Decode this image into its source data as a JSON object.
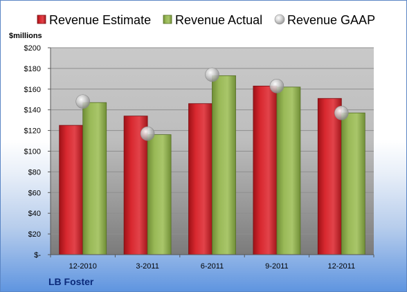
{
  "chart_data": {
    "type": "bar",
    "categories": [
      "12-2010",
      "3-2011",
      "6-2011",
      "9-2011",
      "12-2011"
    ],
    "series": [
      {
        "name": "Revenue Estimate",
        "values": [
          125,
          134,
          146,
          163,
          151
        ],
        "color": "#c8202a"
      },
      {
        "name": "Revenue Actual",
        "values": [
          147,
          116,
          173,
          162,
          137
        ],
        "color": "#8faf4b"
      }
    ],
    "scatter_series": {
      "name": "Revenue GAAP",
      "values": [
        148,
        117,
        174,
        163,
        137
      ],
      "color": "#c0c0c0"
    },
    "ylabel": "$millions",
    "ylim": [
      0,
      200
    ],
    "ytick_step": 20,
    "ytick_labels": [
      "$-",
      "$20",
      "$40",
      "$60",
      "$80",
      "$100",
      "$120",
      "$140",
      "$160",
      "$180",
      "$200"
    ],
    "grid": true,
    "legend": "top"
  },
  "footer": {
    "company": "LB Foster"
  }
}
